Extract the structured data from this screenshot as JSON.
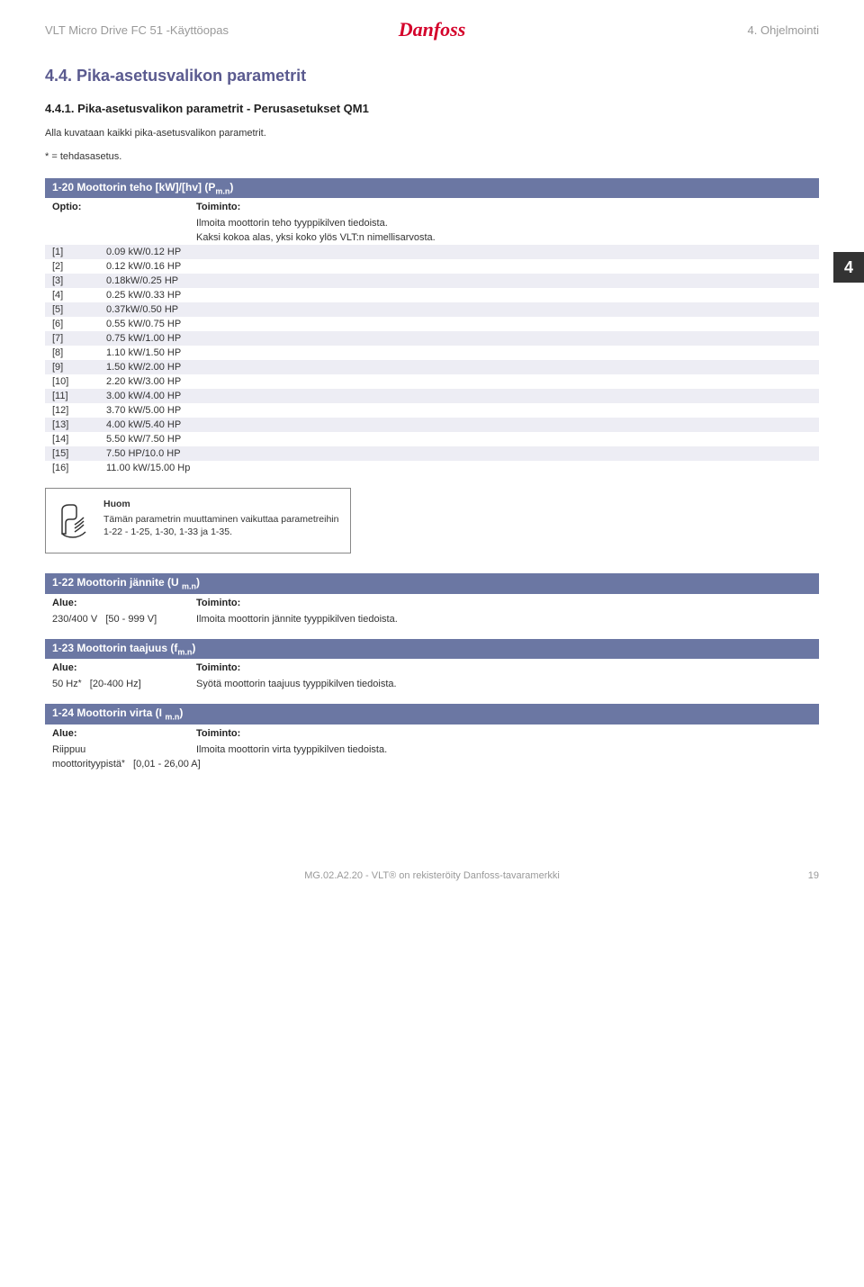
{
  "header": {
    "left": "VLT Micro Drive FC 51 -Käyttöopas",
    "logo": "Danfoss",
    "right": "4. Ohjelmointi"
  },
  "side_badge": "4",
  "section": {
    "title": "4.4. Pika-asetusvalikon parametrit",
    "subtitle": "4.4.1. Pika-asetusvalikon parametrit - Perusasetukset QM1",
    "intro": "Alla kuvataan kaikki pika-asetusvalikon parametrit.",
    "legend": "* = tehdasasetus."
  },
  "block120": {
    "title": "1-20  Moottorin teho [kW]/[hv] (P",
    "title_sub": "m.n",
    "title_tail": ")",
    "col_a": "Optio:",
    "col_b": "Toiminto:",
    "desc1": "Ilmoita moottorin teho tyyppikilven tiedoista.",
    "desc2": "Kaksi kokoa alas, yksi koko ylös VLT:n nimellisarvosta.",
    "rows_bg_even": "#ffffff",
    "rows_bg_odd": "#ededf4",
    "rows": [
      {
        "idx": "[1]",
        "val": "0.09 kW/0.12 HP"
      },
      {
        "idx": "[2]",
        "val": "0.12 kW/0.16 HP"
      },
      {
        "idx": "[3]",
        "val": "0.18kW/0.25 HP"
      },
      {
        "idx": "[4]",
        "val": "0.25 kW/0.33 HP"
      },
      {
        "idx": "[5]",
        "val": "0.37kW/0.50 HP"
      },
      {
        "idx": "[6]",
        "val": "0.55 kW/0.75 HP"
      },
      {
        "idx": "[7]",
        "val": "0.75 kW/1.00 HP"
      },
      {
        "idx": "[8]",
        "val": "1.10 kW/1.50 HP"
      },
      {
        "idx": "[9]",
        "val": "1.50 kW/2.00 HP"
      },
      {
        "idx": "[10]",
        "val": "2.20 kW/3.00 HP"
      },
      {
        "idx": "[11]",
        "val": "3.00 kW/4.00 HP"
      },
      {
        "idx": "[12]",
        "val": "3.70 kW/5.00 HP"
      },
      {
        "idx": "[13]",
        "val": "4.00 kW/5.40 HP"
      },
      {
        "idx": "[14]",
        "val": "5.50 kW/7.50 HP"
      },
      {
        "idx": "[15]",
        "val": "7.50 HP/10.0 HP"
      },
      {
        "idx": "[16]",
        "val": "11.00 kW/15.00 Hp"
      }
    ]
  },
  "note": {
    "heading": "Huom",
    "body": "Tämän parametrin muuttaminen vaikuttaa parametreihin 1-22 - 1-25, 1-30, 1-33 ja 1-35."
  },
  "block122": {
    "title": "1-22  Moottorin jännite (U ",
    "title_sub": "m.n",
    "title_tail": ")",
    "col_a": "Alue:",
    "col_b": "Toiminto:",
    "range_val": "230/400 V",
    "range_bracket": "[50 - 999 V]",
    "desc": "Ilmoita moottorin jännite tyyppikilven tiedoista."
  },
  "block123": {
    "title": "1-23  Moottorin taajuus (f",
    "title_sub": "m.n",
    "title_tail": ")",
    "col_a": "Alue:",
    "col_b": "Toiminto:",
    "range_val": "50 Hz",
    "range_ast": "*",
    "range_bracket": "[20-400 Hz]",
    "desc": "Syötä moottorin taajuus tyyppikilven tiedoista."
  },
  "block124": {
    "title": "1-24  Moottorin virta (I ",
    "title_sub": "m.n",
    "title_tail": ")",
    "col_a": "Alue:",
    "col_b": "Toiminto:",
    "range_val": "Riippuu",
    "range_line2a": "moottorityypistä",
    "range_ast": "*",
    "range_bracket": "[0,01 - 26,00 A]",
    "desc": "Ilmoita moottorin virta tyyppikilven tiedoista."
  },
  "footer": {
    "center": "MG.02.A2.20 - VLT® on rekisteröity Danfoss-tavaramerkki",
    "page": "19"
  },
  "colors": {
    "brand_red": "#d4002a",
    "bar_blue": "#6b77a3",
    "heading_blue": "#5a5a8f",
    "row_odd": "#ededf4",
    "muted": "#999999",
    "text": "#333333"
  }
}
